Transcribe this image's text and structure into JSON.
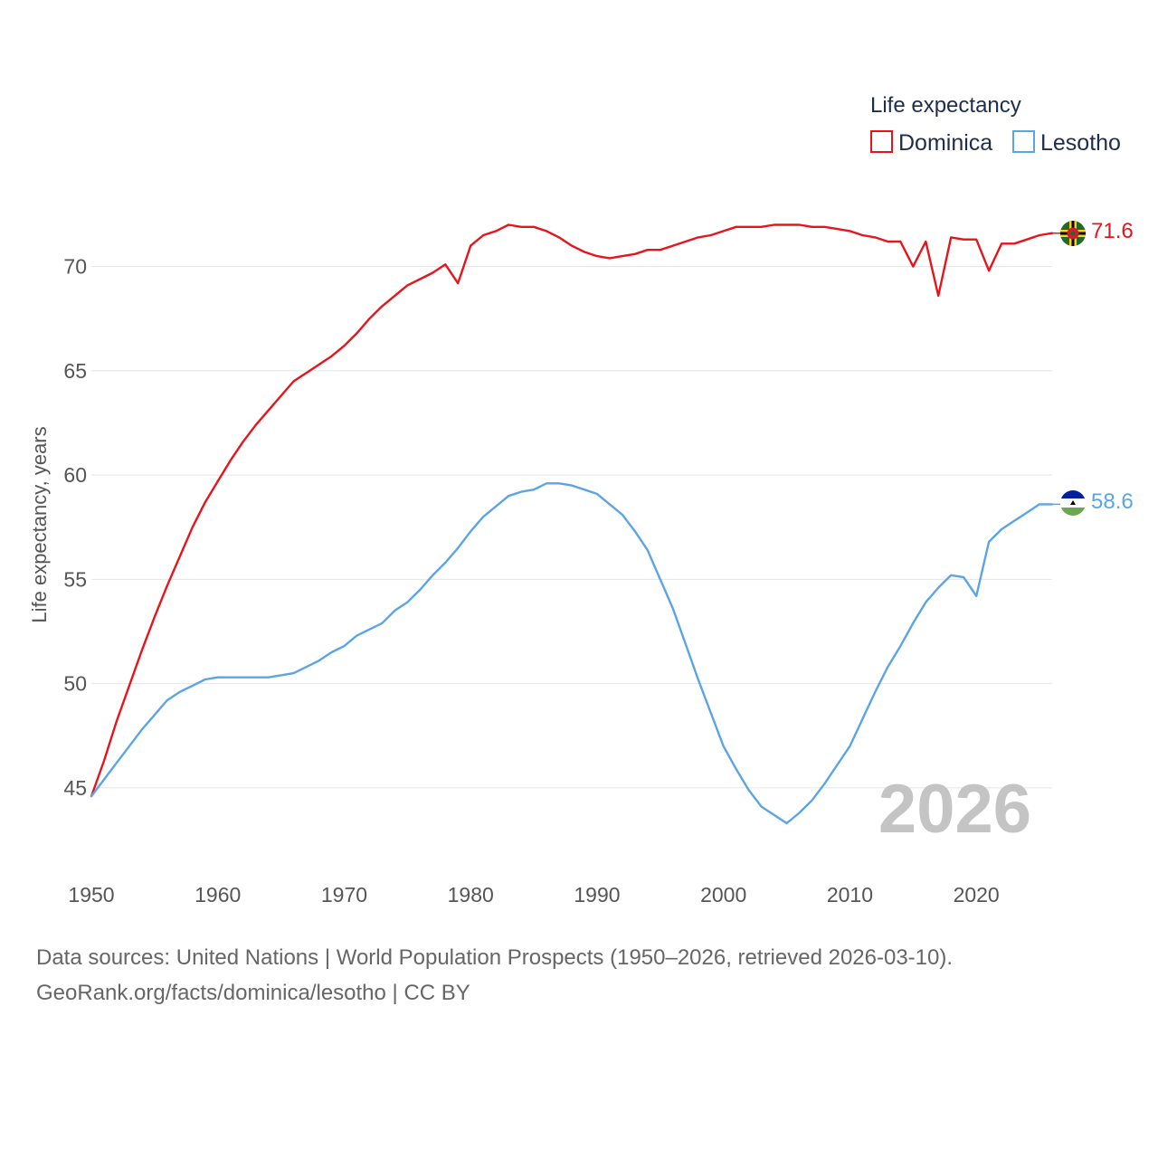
{
  "chart_data": {
    "type": "line",
    "title": "",
    "legend_title": "Life expectancy",
    "ylabel": "Life expectancy, years",
    "xlabel": "",
    "xlim": [
      1950,
      2026
    ],
    "ylim": [
      42,
      72.5
    ],
    "x_ticks": [
      1950,
      1960,
      1970,
      1980,
      1990,
      2000,
      2010,
      2020
    ],
    "y_ticks": [
      45,
      50,
      55,
      60,
      65,
      70
    ],
    "grid": true,
    "legend_position": "top-right",
    "year_watermark": "2026",
    "x": [
      1950,
      1951,
      1952,
      1953,
      1954,
      1955,
      1956,
      1957,
      1958,
      1959,
      1960,
      1961,
      1962,
      1963,
      1964,
      1965,
      1966,
      1967,
      1968,
      1969,
      1970,
      1971,
      1972,
      1973,
      1974,
      1975,
      1976,
      1977,
      1978,
      1979,
      1980,
      1981,
      1982,
      1983,
      1984,
      1985,
      1986,
      1987,
      1988,
      1989,
      1990,
      1991,
      1992,
      1993,
      1994,
      1995,
      1996,
      1997,
      1998,
      1999,
      2000,
      2001,
      2002,
      2003,
      2004,
      2005,
      2006,
      2007,
      2008,
      2009,
      2010,
      2011,
      2012,
      2013,
      2014,
      2015,
      2016,
      2017,
      2018,
      2019,
      2020,
      2021,
      2022,
      2023,
      2024,
      2025,
      2026
    ],
    "series": [
      {
        "name": "Dominica",
        "color": "#e8141c",
        "end_label": "71.6",
        "values": [
          44.6,
          46.3,
          48.2,
          49.9,
          51.6,
          53.2,
          54.7,
          56.1,
          57.5,
          58.7,
          59.7,
          60.7,
          61.6,
          62.4,
          63.1,
          63.8,
          64.5,
          64.9,
          65.3,
          65.7,
          66.2,
          66.8,
          67.5,
          68.1,
          68.6,
          69.1,
          69.4,
          69.7,
          70.1,
          69.2,
          71.0,
          71.5,
          71.7,
          72.0,
          71.9,
          71.9,
          71.7,
          71.4,
          71.0,
          70.7,
          70.5,
          70.4,
          70.5,
          70.6,
          70.8,
          70.8,
          71.0,
          71.2,
          71.4,
          71.5,
          71.7,
          71.9,
          71.9,
          71.9,
          72.0,
          72.0,
          72.0,
          71.9,
          71.9,
          71.8,
          71.7,
          71.5,
          71.4,
          71.2,
          71.2,
          70.0,
          71.2,
          68.6,
          71.4,
          71.3,
          71.3,
          69.8,
          71.1,
          71.1,
          71.3,
          71.5,
          71.6
        ]
      },
      {
        "name": "Lesotho",
        "color": "#5ba4e6",
        "end_label": "58.6",
        "values": [
          44.6,
          45.4,
          46.2,
          47.0,
          47.8,
          48.5,
          49.2,
          49.6,
          49.9,
          50.2,
          50.3,
          50.3,
          50.3,
          50.3,
          50.3,
          50.4,
          50.5,
          50.8,
          51.1,
          51.5,
          51.8,
          52.3,
          52.6,
          52.9,
          53.5,
          53.9,
          54.5,
          55.2,
          55.8,
          56.5,
          57.3,
          58.0,
          58.5,
          59.0,
          59.2,
          59.3,
          59.6,
          59.6,
          59.5,
          59.3,
          59.1,
          58.6,
          58.1,
          57.3,
          56.4,
          55.0,
          53.6,
          51.9,
          50.2,
          48.6,
          47.0,
          45.9,
          44.9,
          44.1,
          43.7,
          43.3,
          43.8,
          44.4,
          45.2,
          46.1,
          47.0,
          48.3,
          49.6,
          50.8,
          51.8,
          52.9,
          53.9,
          54.6,
          55.2,
          55.1,
          54.2,
          56.8,
          57.4,
          57.8,
          58.2,
          58.6,
          58.6
        ]
      }
    ]
  },
  "footer": {
    "line1": "Data sources: United Nations | World Population Prospects (1950–2026, retrieved 2026-03-10).",
    "line2": "GeoRank.org/facts/dominica/lesotho | CC BY"
  }
}
